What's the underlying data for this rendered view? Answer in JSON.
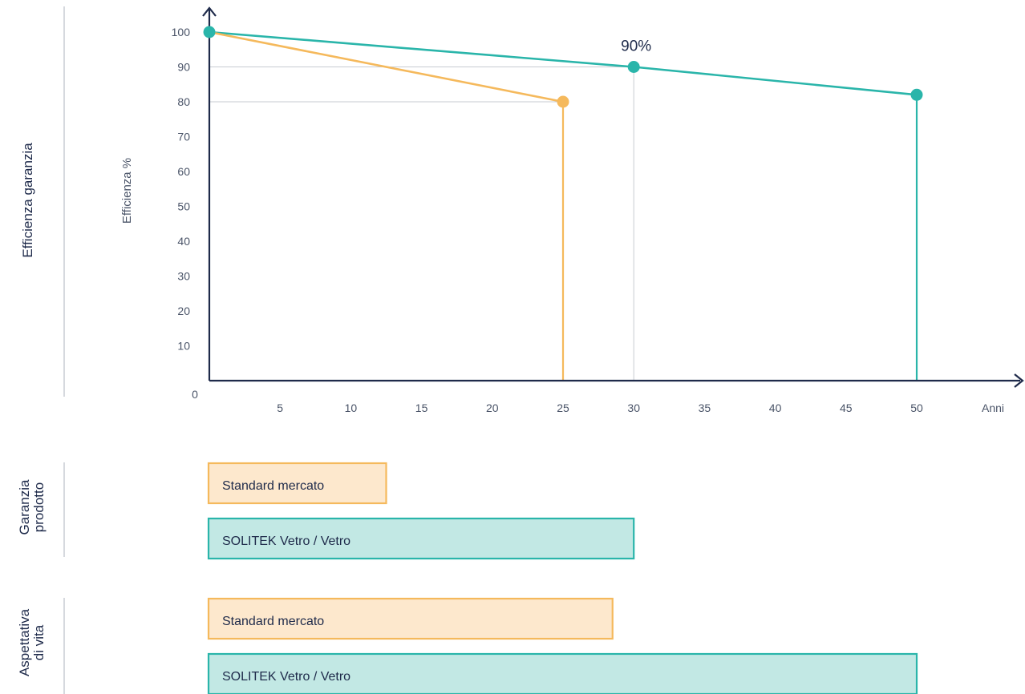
{
  "chart_data": {
    "type": "line",
    "ylabel": "Efficienza %",
    "xlabel": "Anni",
    "section_label": "Efficienza garanzia",
    "x_ticks": [
      5,
      10,
      15,
      20,
      25,
      30,
      35,
      40,
      45,
      50
    ],
    "y_ticks": [
      10,
      20,
      30,
      40,
      50,
      60,
      70,
      80,
      90,
      100
    ],
    "origin_label": "0",
    "xlim": [
      0,
      50
    ],
    "ylim": [
      0,
      100
    ],
    "grid": false,
    "series": [
      {
        "color": "#f5b95c",
        "points": [
          [
            0,
            100
          ],
          [
            25,
            80
          ]
        ]
      },
      {
        "color": "#2ab5aa",
        "points": [
          [
            0,
            100
          ],
          [
            30,
            90
          ],
          [
            50,
            82
          ]
        ]
      }
    ],
    "annotation": {
      "text": "90%",
      "x": 30,
      "y": 90
    },
    "bar_groups": [
      {
        "label_lines": [
          "Garanzia",
          "prodotto"
        ],
        "bars": [
          {
            "label": "Standard mercato",
            "value": 12.5,
            "fill": "#fde8cd",
            "stroke": "#f5b95c"
          },
          {
            "label": "SOLITEK Vetro / Vetro",
            "value": 30,
            "fill": "#c2e8e4",
            "stroke": "#2ab5aa"
          }
        ]
      },
      {
        "label_lines": [
          "Aspettativa",
          "di vita"
        ],
        "bars": [
          {
            "label": "Standard mercato",
            "value": 28.5,
            "fill": "#fde8cd",
            "stroke": "#f5b95c"
          },
          {
            "label": "SOLITEK Vetro / Vetro",
            "value": 50,
            "fill": "#c2e8e4",
            "stroke": "#2ab5aa"
          }
        ]
      }
    ]
  }
}
